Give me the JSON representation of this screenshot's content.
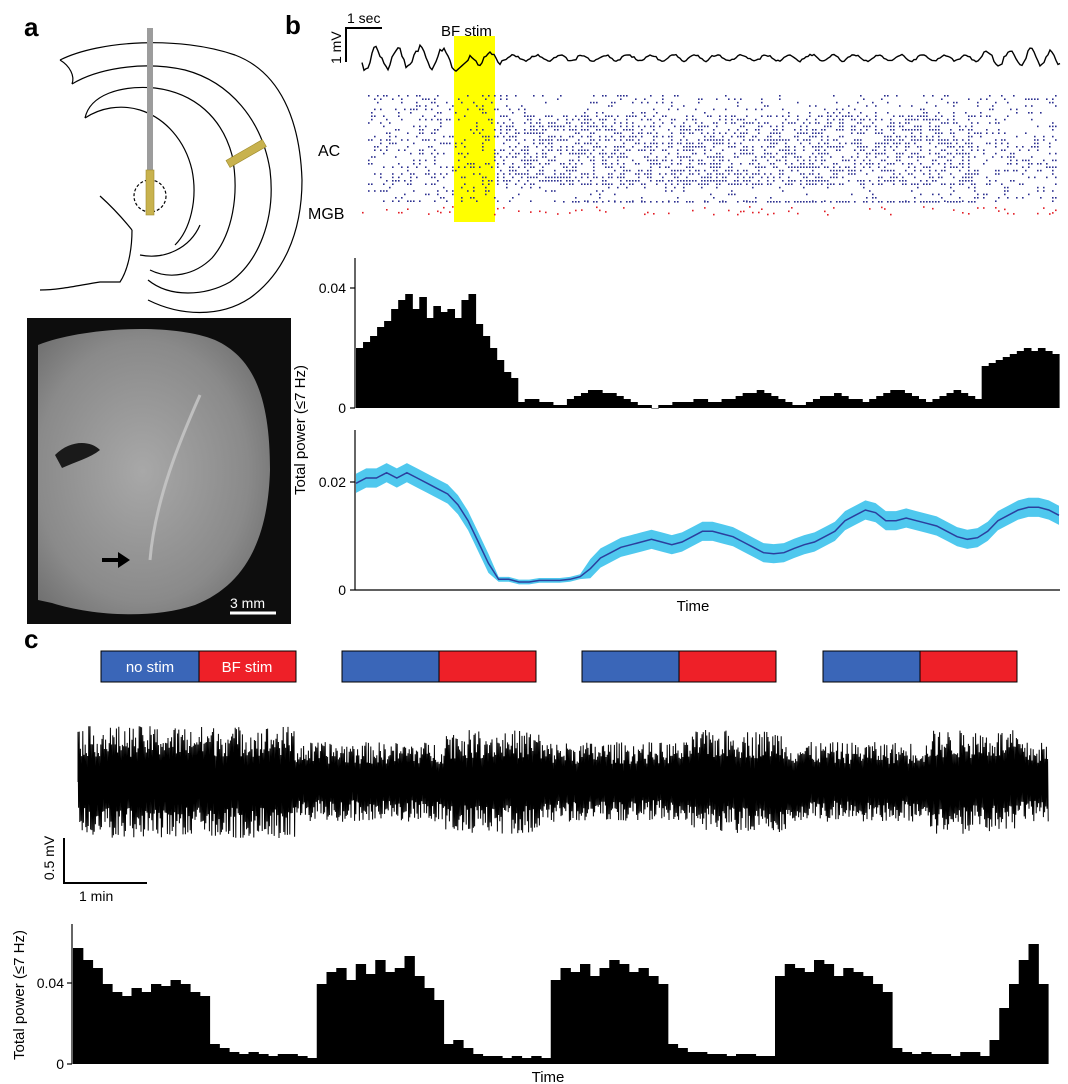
{
  "panels": {
    "a": {
      "letter": "a",
      "scale_bar_label": "3 mm"
    },
    "b": {
      "letter": "b",
      "time_scale_label": "1 sec",
      "voltage_scale_label": "1 mV",
      "stim_label": "BF stim",
      "raster_labels": {
        "ac": "AC",
        "mgb": "MGB"
      },
      "ylabel": "Total power (≤7 Hz)",
      "xlabel": "Time"
    },
    "c": {
      "letter": "c",
      "legend": {
        "no_stim": "no stim",
        "bf_stim": "BF stim"
      },
      "voltage_scale_label": "0.5 mV",
      "time_scale_label": "1 min",
      "ylabel": "Total power (≤7 Hz)",
      "xlabel": "Time"
    }
  },
  "colors": {
    "no_stim": "#3a66b8",
    "bf_stim": "#ee2028",
    "stim_highlight": "#ffff00",
    "ac_spikes": "#2b2f8f",
    "mgb_spikes": "#e21b23",
    "mean_line": "#2b3f9e",
    "sem_band": "#4fc8ee"
  },
  "chart_data": [
    {
      "id": "b-power-histogram",
      "type": "bar",
      "xlabel": "Time",
      "ylabel": "Total power (≤7 Hz)",
      "ylim": [
        0,
        0.05
      ],
      "yticks": [
        0,
        0.04
      ],
      "values": [
        0.02,
        0.022,
        0.024,
        0.027,
        0.029,
        0.033,
        0.036,
        0.038,
        0.033,
        0.037,
        0.03,
        0.034,
        0.032,
        0.033,
        0.03,
        0.036,
        0.038,
        0.028,
        0.024,
        0.02,
        0.016,
        0.012,
        0.01,
        0.002,
        0.003,
        0.003,
        0.002,
        0.002,
        0.001,
        0.001,
        0.003,
        0.004,
        0.005,
        0.006,
        0.006,
        0.005,
        0.005,
        0.004,
        0.003,
        0.002,
        0.001,
        0.001,
        0.0,
        0.001,
        0.001,
        0.002,
        0.002,
        0.002,
        0.003,
        0.003,
        0.002,
        0.002,
        0.003,
        0.003,
        0.004,
        0.005,
        0.005,
        0.006,
        0.005,
        0.004,
        0.003,
        0.002,
        0.001,
        0.001,
        0.002,
        0.003,
        0.004,
        0.004,
        0.005,
        0.004,
        0.003,
        0.003,
        0.002,
        0.003,
        0.004,
        0.005,
        0.006,
        0.006,
        0.005,
        0.004,
        0.003,
        0.002,
        0.003,
        0.004,
        0.005,
        0.006,
        0.005,
        0.004,
        0.003,
        0.014,
        0.015,
        0.016,
        0.017,
        0.018,
        0.019,
        0.02,
        0.019,
        0.02,
        0.019,
        0.018
      ]
    },
    {
      "id": "b-power-mean-sem",
      "type": "line",
      "xlabel": "Time",
      "ylabel": "Total power (≤7 Hz)",
      "ylim": [
        0,
        0.03
      ],
      "yticks": [
        0,
        0.02
      ],
      "series": [
        {
          "values": [
            0.02,
            0.021,
            0.021,
            0.022,
            0.021,
            0.022,
            0.021,
            0.02,
            0.019,
            0.018,
            0.016,
            0.013,
            0.009,
            0.005,
            0.002,
            0.002,
            0.0015,
            0.0015,
            0.0018,
            0.0018,
            0.0018,
            0.002,
            0.0025,
            0.004,
            0.006,
            0.007,
            0.008,
            0.0085,
            0.009,
            0.0095,
            0.009,
            0.0085,
            0.009,
            0.01,
            0.011,
            0.011,
            0.0105,
            0.01,
            0.009,
            0.008,
            0.007,
            0.0068,
            0.007,
            0.0078,
            0.0085,
            0.009,
            0.01,
            0.011,
            0.013,
            0.014,
            0.015,
            0.0145,
            0.013,
            0.013,
            0.0135,
            0.013,
            0.0125,
            0.012,
            0.011,
            0.01,
            0.0095,
            0.0098,
            0.011,
            0.013,
            0.014,
            0.015,
            0.0155,
            0.0155,
            0.015,
            0.014
          ],
          "sem": 0.0018
        }
      ]
    },
    {
      "id": "c-power-histogram",
      "type": "bar",
      "xlabel": "Time",
      "ylabel": "Total power (≤7 Hz)",
      "ylim": [
        0,
        0.07
      ],
      "yticks": [
        0,
        0.04
      ],
      "values": [
        0.058,
        0.052,
        0.048,
        0.04,
        0.036,
        0.034,
        0.038,
        0.036,
        0.04,
        0.039,
        0.042,
        0.04,
        0.036,
        0.034,
        0.01,
        0.008,
        0.006,
        0.005,
        0.006,
        0.005,
        0.004,
        0.005,
        0.005,
        0.004,
        0.003,
        0.04,
        0.046,
        0.048,
        0.042,
        0.05,
        0.045,
        0.052,
        0.046,
        0.048,
        0.054,
        0.044,
        0.038,
        0.032,
        0.01,
        0.012,
        0.008,
        0.005,
        0.004,
        0.004,
        0.003,
        0.004,
        0.003,
        0.004,
        0.003,
        0.042,
        0.048,
        0.046,
        0.05,
        0.044,
        0.048,
        0.052,
        0.05,
        0.046,
        0.048,
        0.044,
        0.04,
        0.01,
        0.008,
        0.006,
        0.006,
        0.005,
        0.005,
        0.004,
        0.005,
        0.005,
        0.004,
        0.004,
        0.044,
        0.05,
        0.048,
        0.046,
        0.052,
        0.05,
        0.044,
        0.048,
        0.046,
        0.044,
        0.04,
        0.036,
        0.008,
        0.006,
        0.005,
        0.006,
        0.005,
        0.005,
        0.004,
        0.006,
        0.006,
        0.004,
        0.012,
        0.028,
        0.04,
        0.052,
        0.06,
        0.04
      ]
    }
  ]
}
